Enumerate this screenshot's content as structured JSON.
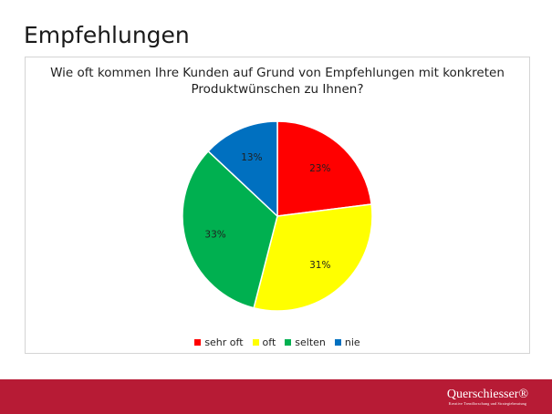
{
  "slide": {
    "title": "Empfehlungen"
  },
  "chart_data": {
    "type": "pie",
    "title_lines": [
      "Wie oft kommen Ihre Kunden auf Grund von Empfehlungen mit konkreten",
      "Produktwünschen zu Ihnen?"
    ],
    "categories": [
      "sehr oft",
      "oft",
      "selten",
      "nie"
    ],
    "values": [
      23,
      31,
      33,
      13
    ],
    "labels": [
      "23%",
      "31%",
      "33%",
      "13%"
    ],
    "colors": [
      "#ff0000",
      "#ffff00",
      "#00b050",
      "#0070c0"
    ],
    "start_angle": "12 o'clock, clockwise",
    "legend_position": "bottom"
  },
  "footer": {
    "logo_text": "Querschiesser®",
    "logo_tagline": "Kreative Trendforschung und Strategieberatung"
  }
}
